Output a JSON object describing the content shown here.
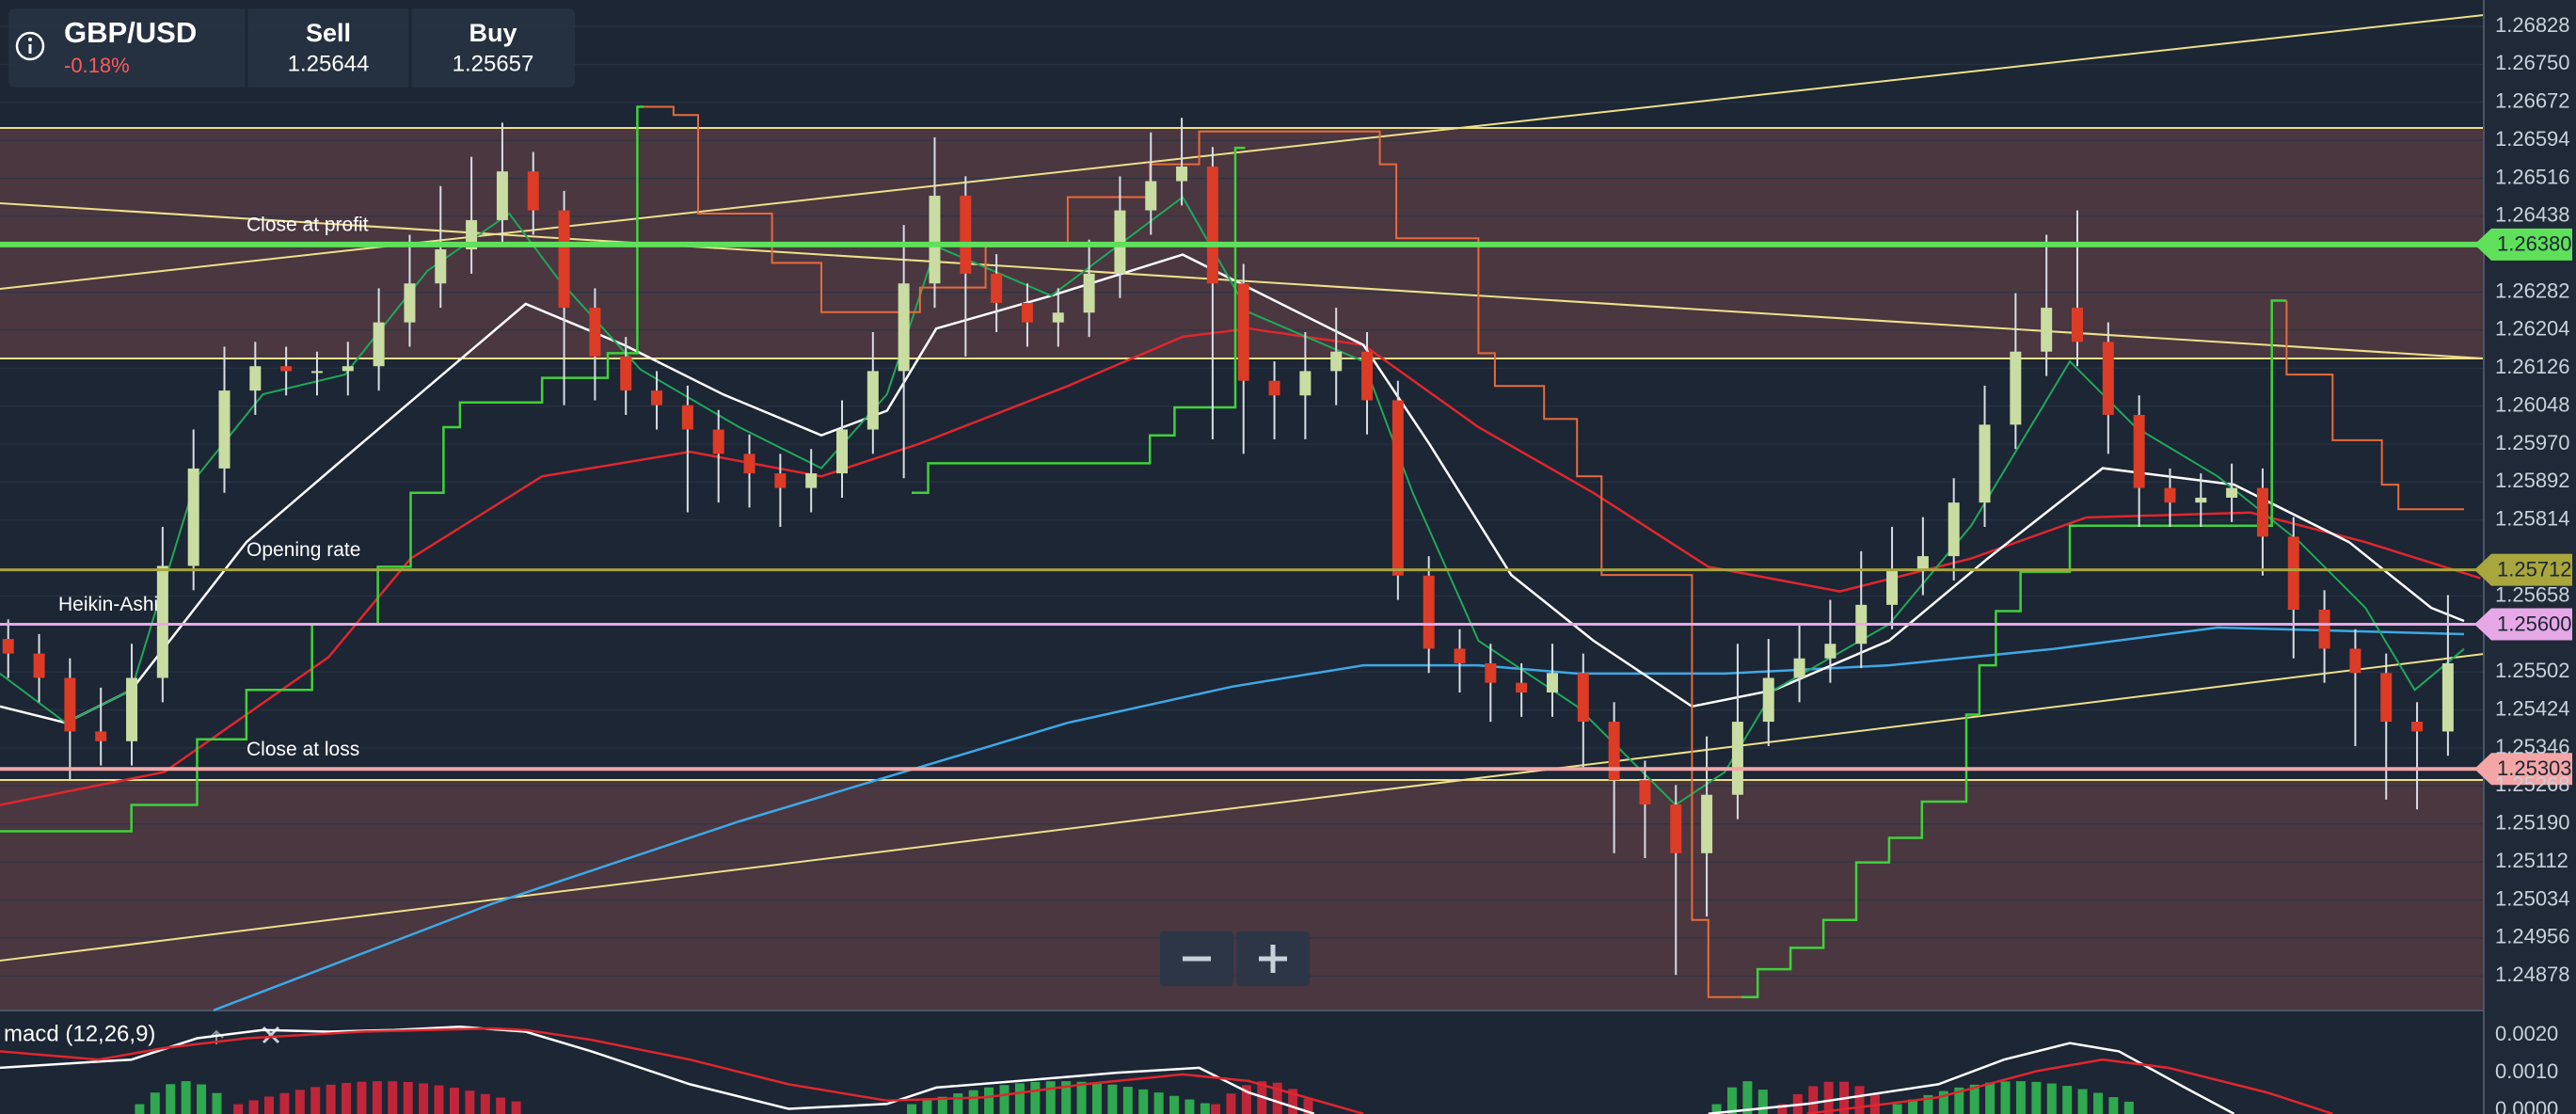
{
  "header": {
    "symbol": "GBP/USD",
    "change": "-0.18%",
    "sell": {
      "label": "Sell",
      "price": "1.25644"
    },
    "buy": {
      "label": "Buy",
      "price": "1.25657"
    }
  },
  "price_chart": {
    "ylim": [
      1.24807,
      1.26882
    ],
    "yticks": [
      1.26828,
      {
        "value": 1.2675,
        "label": "1.26750"
      },
      1.26672,
      1.26594,
      1.26516,
      1.26438,
      1.26282,
      1.26204,
      1.26126,
      1.26048,
      {
        "value": 1.2597,
        "label": "1.25970"
      },
      1.25892,
      1.25814,
      1.25658,
      1.25502,
      1.25424,
      1.25346,
      1.25268,
      {
        "value": 1.2519,
        "label": "1.25190"
      },
      1.25112,
      1.25034,
      1.24956,
      1.24878
    ],
    "price_lines": [
      {
        "label": "Close at profit",
        "value": 1.2638,
        "value_label": "1.26380",
        "color": "#5fe05a"
      },
      {
        "label": "Opening rate",
        "value": 1.25712,
        "value_label": "1.25712",
        "color": "#a8a63c"
      },
      {
        "label": "Heikin-Ashi",
        "value": 1.256,
        "value_label": "1.25600",
        "color": "#e6a8e6"
      },
      {
        "label": "Close at loss",
        "value": 1.25303,
        "value_label": "1.25303",
        "color": "#f4a6a6"
      }
    ],
    "candles": {
      "open": [
        1.2557,
        1.2554,
        1.2549,
        1.2538,
        1.2536,
        1.2549,
        1.2572,
        1.2592,
        1.2608,
        1.2613,
        1.2612,
        1.2612,
        1.2613,
        1.2622,
        1.263,
        1.2637,
        1.2643,
        1.2653,
        1.2645,
        1.2625,
        1.2615,
        1.2608,
        1.2605,
        1.26,
        1.2595,
        1.2591,
        1.2588,
        1.2591,
        1.26,
        1.2612,
        1.263,
        1.2648,
        1.2632,
        1.2626,
        1.2622,
        1.2624,
        1.2632,
        1.2645,
        1.2651,
        1.2654,
        1.263,
        1.261,
        1.2607,
        1.2612,
        1.2616,
        1.2606,
        1.257,
        1.2555,
        1.2552,
        1.2548,
        1.2546,
        1.255,
        1.254,
        1.2528,
        1.2523,
        1.2513,
        1.2525,
        1.254,
        1.2549,
        1.2553,
        1.2556,
        1.2564,
        1.2571,
        1.2574,
        1.2585,
        1.2601,
        1.2616,
        1.2625,
        1.2618,
        1.2603,
        1.2588,
        1.2585,
        1.2586,
        1.2588,
        1.2578,
        1.2563,
        1.2555,
        1.255,
        1.254,
        1.2538
      ],
      "high": [
        1.2561,
        1.2558,
        1.2553,
        1.2547,
        1.2556,
        1.258,
        1.26,
        1.2617,
        1.2618,
        1.2617,
        1.2616,
        1.2618,
        1.2629,
        1.264,
        1.265,
        1.2656,
        1.2663,
        1.2657,
        1.2649,
        1.2629,
        1.2619,
        1.2612,
        1.2609,
        1.2604,
        1.2599,
        1.2595,
        1.2596,
        1.2606,
        1.262,
        1.2642,
        1.266,
        1.2652,
        1.2636,
        1.263,
        1.2629,
        1.2639,
        1.2652,
        1.2661,
        1.2664,
        1.2658,
        1.2634,
        1.2614,
        1.262,
        1.2625,
        1.262,
        1.261,
        1.2574,
        1.2559,
        1.2556,
        1.2552,
        1.2556,
        1.2554,
        1.2544,
        1.2532,
        1.2527,
        1.2537,
        1.2556,
        1.2557,
        1.256,
        1.2565,
        1.2575,
        1.258,
        1.2582,
        1.259,
        1.2609,
        1.2628,
        1.264,
        1.2645,
        1.2622,
        1.2607,
        1.2592,
        1.2591,
        1.2593,
        1.2592,
        1.2582,
        1.2567,
        1.2559,
        1.2554,
        1.2544,
        1.2566
      ],
      "low": [
        1.2549,
        1.2544,
        1.2528,
        1.2531,
        1.2531,
        1.2544,
        1.2567,
        1.2587,
        1.2603,
        1.2607,
        1.2607,
        1.2607,
        1.2608,
        1.2617,
        1.2625,
        1.2632,
        1.2638,
        1.264,
        1.2605,
        1.2606,
        1.2603,
        1.26,
        1.2583,
        1.2585,
        1.2584,
        1.258,
        1.2583,
        1.2586,
        1.2595,
        1.259,
        1.2625,
        1.2615,
        1.262,
        1.2617,
        1.2617,
        1.2619,
        1.2627,
        1.264,
        1.2646,
        1.2598,
        1.2595,
        1.2598,
        1.2598,
        1.2605,
        1.2599,
        1.2565,
        1.255,
        1.2546,
        1.254,
        1.2541,
        1.2541,
        1.253,
        1.2513,
        1.2512,
        1.2488,
        1.25,
        1.252,
        1.2535,
        1.2544,
        1.2548,
        1.2551,
        1.2559,
        1.2566,
        1.2569,
        1.258,
        1.2596,
        1.2611,
        1.2613,
        1.2595,
        1.258,
        1.258,
        1.258,
        1.2581,
        1.257,
        1.2553,
        1.2548,
        1.2535,
        1.2524,
        1.2522,
        1.2533
      ],
      "close": [
        1.2554,
        1.2549,
        1.2538,
        1.2536,
        1.2549,
        1.2572,
        1.2592,
        1.2608,
        1.2613,
        1.2612,
        1.2612,
        1.2613,
        1.2622,
        1.263,
        1.2637,
        1.2643,
        1.2653,
        1.2645,
        1.2625,
        1.2615,
        1.2608,
        1.2605,
        1.26,
        1.2595,
        1.2591,
        1.2588,
        1.2591,
        1.26,
        1.2612,
        1.263,
        1.2648,
        1.2632,
        1.2626,
        1.2622,
        1.2624,
        1.2632,
        1.2645,
        1.2651,
        1.2654,
        1.263,
        1.261,
        1.2607,
        1.2612,
        1.2616,
        1.2606,
        1.257,
        1.2555,
        1.2552,
        1.2548,
        1.2546,
        1.255,
        1.254,
        1.2528,
        1.2523,
        1.2513,
        1.2525,
        1.254,
        1.2549,
        1.2553,
        1.2556,
        1.2564,
        1.2571,
        1.2574,
        1.2585,
        1.2601,
        1.2616,
        1.2625,
        1.2618,
        1.2603,
        1.2588,
        1.2585,
        1.2586,
        1.2588,
        1.2578,
        1.2563,
        1.2555,
        1.255,
        1.254,
        1.2538,
        1.2552
      ]
    }
  },
  "macd": {
    "label": "macd (12,26,9)",
    "ylim": [
      -0.0001,
      0.00265
    ],
    "yticks": [
      {
        "value": 0.002,
        "label": "0.0020"
      },
      {
        "value": 0.001,
        "label": "0.0010"
      },
      {
        "value": 0,
        "label": "0.0000"
      }
    ]
  }
}
